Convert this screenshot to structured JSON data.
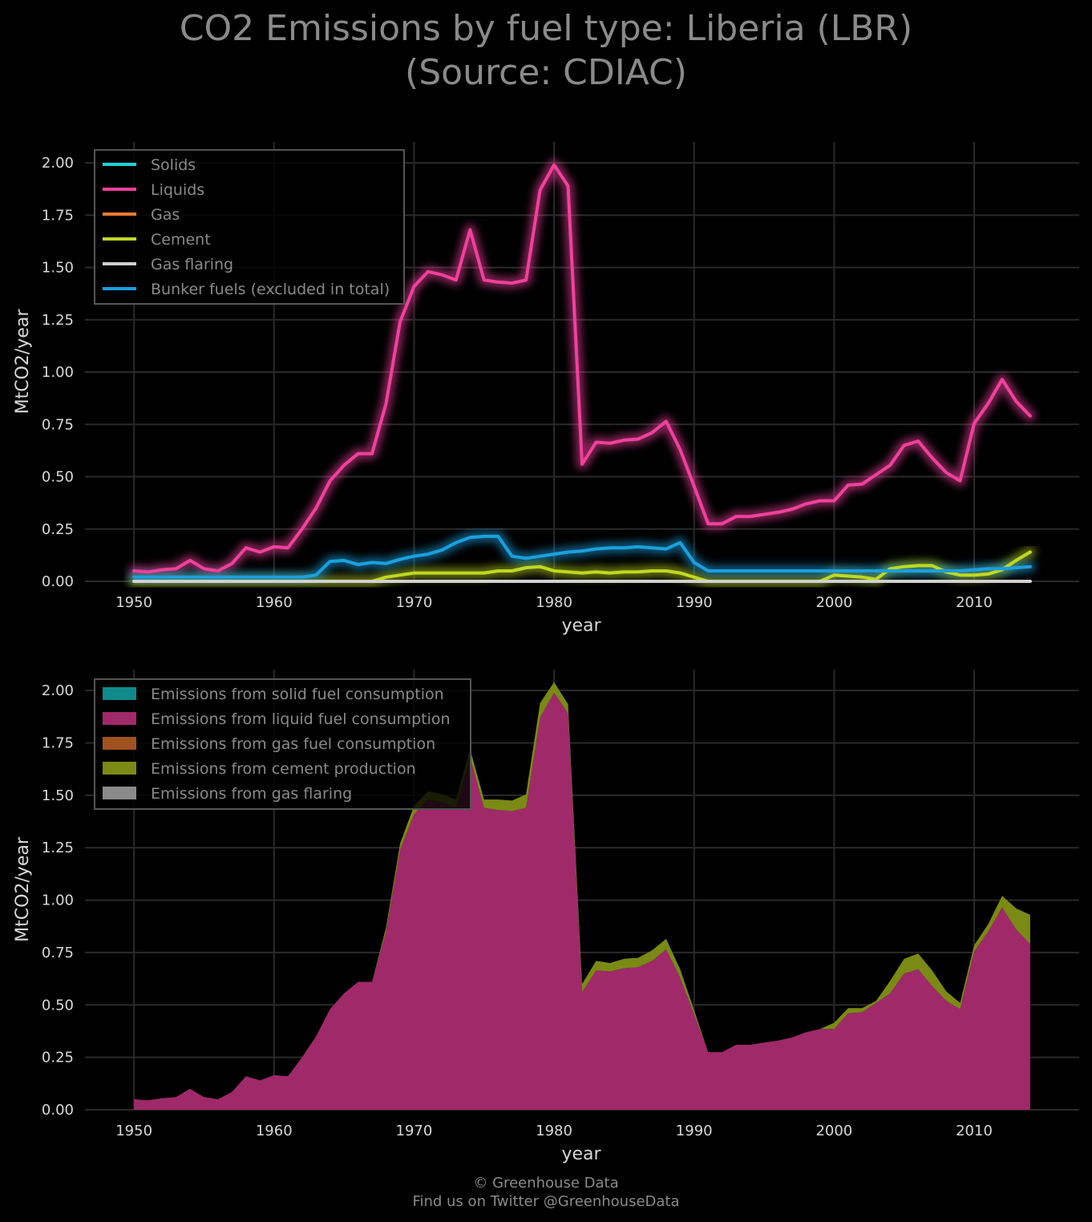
{
  "title": {
    "line1": "CO2 Emissions by fuel type: Liberia (LBR)",
    "line2": "(Source: CDIAC)"
  },
  "footer": {
    "line1": "© Greenhouse Data",
    "line2": "Find us on Twitter @GreenhouseData"
  },
  "colors": {
    "background": "#000000",
    "grid": "#2a2a2a",
    "text": "#8a8a8a",
    "tick_text": "#d8d8d8",
    "solids": "#19d3d3",
    "liquids": "#f0409c",
    "gas": "#f07a30",
    "cement": "#c0d820",
    "gas_flaring": "#d0d0d0",
    "bunker": "#1aa0e0",
    "solids_fill": "#0f8a8a",
    "liquids_fill": "#a0296a",
    "gas_fill": "#a0521e",
    "cement_fill": "#7a8a14",
    "flaring_fill": "#8a8a8a"
  },
  "chart_data": [
    {
      "type": "line",
      "xlabel": "year",
      "ylabel": "MtCO2/year",
      "xlim": [
        1946.5,
        2017.5
      ],
      "ylim": [
        0,
        2.1
      ],
      "xticks": [
        1950,
        1960,
        1970,
        1980,
        1990,
        2000,
        2010
      ],
      "xtick_labels": [
        "1950",
        "1960",
        "1970",
        "1980",
        "1990",
        "2000",
        "2010"
      ],
      "yticks": [
        0,
        0.25,
        0.5,
        0.75,
        1.0,
        1.25,
        1.5,
        1.75,
        2.0
      ],
      "ytick_labels": [
        "0.00",
        "0.25",
        "0.50",
        "0.75",
        "1.00",
        "1.25",
        "1.50",
        "1.75",
        "2.00"
      ],
      "grid": true,
      "legend_position": "top-left",
      "x": [
        1950,
        1951,
        1952,
        1953,
        1954,
        1955,
        1956,
        1957,
        1958,
        1959,
        1960,
        1961,
        1962,
        1963,
        1964,
        1965,
        1966,
        1967,
        1968,
        1969,
        1970,
        1971,
        1972,
        1973,
        1974,
        1975,
        1976,
        1977,
        1978,
        1979,
        1980,
        1981,
        1982,
        1983,
        1984,
        1985,
        1986,
        1987,
        1988,
        1989,
        1990,
        1991,
        1992,
        1993,
        1994,
        1995,
        1996,
        1997,
        1998,
        1999,
        2000,
        2001,
        2002,
        2003,
        2004,
        2005,
        2006,
        2007,
        2008,
        2009,
        2010,
        2011,
        2012,
        2013,
        2014
      ],
      "series": [
        {
          "name": "Solids",
          "color_key": "solids",
          "values": [
            0,
            0,
            0,
            0,
            0,
            0,
            0,
            0,
            0,
            0,
            0,
            0,
            0,
            0,
            0,
            0,
            0,
            0,
            0,
            0,
            0,
            0,
            0,
            0,
            0,
            0,
            0,
            0,
            0,
            0,
            0,
            0,
            0,
            0,
            0,
            0,
            0,
            0,
            0,
            0,
            0,
            0,
            0,
            0,
            0,
            0,
            0,
            0,
            0,
            0,
            0,
            0,
            0,
            0,
            0,
            0,
            0,
            0,
            0,
            0,
            0,
            0,
            0,
            0,
            0
          ]
        },
        {
          "name": "Liquids",
          "color_key": "liquids",
          "values": [
            0.05,
            0.045,
            0.055,
            0.06,
            0.1,
            0.06,
            0.05,
            0.085,
            0.16,
            0.14,
            0.165,
            0.16,
            0.25,
            0.35,
            0.48,
            0.555,
            0.61,
            0.61,
            0.85,
            1.24,
            1.41,
            1.48,
            1.465,
            1.44,
            1.68,
            1.44,
            1.43,
            1.425,
            1.44,
            1.87,
            1.99,
            1.89,
            0.56,
            0.665,
            0.66,
            0.675,
            0.68,
            0.71,
            0.765,
            0.63,
            0.455,
            0.275,
            0.275,
            0.31,
            0.31,
            0.32,
            0.33,
            0.345,
            0.37,
            0.385,
            0.385,
            0.46,
            0.465,
            0.51,
            0.555,
            0.65,
            0.67,
            0.59,
            0.52,
            0.48,
            0.755,
            0.85,
            0.965,
            0.86,
            0.79
          ]
        },
        {
          "name": "Gas",
          "color_key": "gas",
          "values": [
            0,
            0,
            0,
            0,
            0,
            0,
            0,
            0,
            0,
            0,
            0,
            0,
            0,
            0,
            0,
            0,
            0,
            0,
            0,
            0,
            0,
            0,
            0,
            0,
            0,
            0,
            0,
            0,
            0,
            0,
            0,
            0,
            0,
            0,
            0,
            0,
            0,
            0,
            0,
            0,
            0,
            0,
            0,
            0,
            0,
            0,
            0,
            0,
            0,
            0,
            0,
            0,
            0,
            0,
            0,
            0,
            0,
            0,
            0,
            0,
            0,
            0,
            0,
            0,
            0
          ]
        },
        {
          "name": "Cement",
          "color_key": "cement",
          "values": [
            0,
            0,
            0,
            0,
            0,
            0,
            0,
            0,
            0,
            0,
            0,
            0,
            0,
            0,
            0,
            0,
            0,
            0,
            0.02,
            0.03,
            0.04,
            0.04,
            0.04,
            0.04,
            0.04,
            0.04,
            0.05,
            0.05,
            0.065,
            0.07,
            0.05,
            0.045,
            0.04,
            0.045,
            0.04,
            0.045,
            0.045,
            0.05,
            0.05,
            0.04,
            0.02,
            0,
            0,
            0,
            0,
            0,
            0,
            0,
            0,
            0,
            0.03,
            0.025,
            0.02,
            0.01,
            0.06,
            0.07,
            0.075,
            0.075,
            0.045,
            0.03,
            0.03,
            0.035,
            0.055,
            0.1,
            0.14
          ]
        },
        {
          "name": "Gas flaring",
          "color_key": "gas_flaring",
          "values": [
            0,
            0,
            0,
            0,
            0,
            0,
            0,
            0,
            0,
            0,
            0,
            0,
            0,
            0,
            0,
            0,
            0,
            0,
            0,
            0,
            0,
            0,
            0,
            0,
            0,
            0,
            0,
            0,
            0,
            0,
            0,
            0,
            0,
            0,
            0,
            0,
            0,
            0,
            0,
            0,
            0,
            0,
            0,
            0,
            0,
            0,
            0,
            0,
            0,
            0,
            0,
            0,
            0,
            0,
            0,
            0,
            0,
            0,
            0,
            0,
            0,
            0,
            0,
            0,
            0
          ]
        },
        {
          "name": "Bunker fuels (excluded in total)",
          "color_key": "bunker",
          "values": [
            0.02,
            0.02,
            0.02,
            0.02,
            0.02,
            0.02,
            0.02,
            0.02,
            0.02,
            0.02,
            0.02,
            0.02,
            0.02,
            0.03,
            0.095,
            0.1,
            0.08,
            0.09,
            0.085,
            0.105,
            0.12,
            0.13,
            0.15,
            0.185,
            0.21,
            0.215,
            0.215,
            0.12,
            0.11,
            0.12,
            0.13,
            0.14,
            0.145,
            0.155,
            0.16,
            0.16,
            0.165,
            0.16,
            0.155,
            0.185,
            0.09,
            0.05,
            0.05,
            0.05,
            0.05,
            0.05,
            0.05,
            0.05,
            0.05,
            0.05,
            0.05,
            0.05,
            0.05,
            0.05,
            0.05,
            0.05,
            0.05,
            0.05,
            0.05,
            0.05,
            0.055,
            0.06,
            0.06,
            0.065,
            0.07
          ]
        }
      ]
    },
    {
      "type": "area",
      "stacked": true,
      "xlabel": "year",
      "ylabel": "MtCO2/year",
      "xlim": [
        1946.5,
        2017.5
      ],
      "ylim": [
        0,
        2.1
      ],
      "xticks": [
        1950,
        1960,
        1970,
        1980,
        1990,
        2000,
        2010
      ],
      "xtick_labels": [
        "1950",
        "1960",
        "1970",
        "1980",
        "1990",
        "2000",
        "2010"
      ],
      "yticks": [
        0,
        0.25,
        0.5,
        0.75,
        1.0,
        1.25,
        1.5,
        1.75,
        2.0
      ],
      "ytick_labels": [
        "0.00",
        "0.25",
        "0.50",
        "0.75",
        "1.00",
        "1.25",
        "1.50",
        "1.75",
        "2.00"
      ],
      "grid": true,
      "legend_position": "top-left",
      "x": [
        1950,
        1951,
        1952,
        1953,
        1954,
        1955,
        1956,
        1957,
        1958,
        1959,
        1960,
        1961,
        1962,
        1963,
        1964,
        1965,
        1966,
        1967,
        1968,
        1969,
        1970,
        1971,
        1972,
        1973,
        1974,
        1975,
        1976,
        1977,
        1978,
        1979,
        1980,
        1981,
        1982,
        1983,
        1984,
        1985,
        1986,
        1987,
        1988,
        1989,
        1990,
        1991,
        1992,
        1993,
        1994,
        1995,
        1996,
        1997,
        1998,
        1999,
        2000,
        2001,
        2002,
        2003,
        2004,
        2005,
        2006,
        2007,
        2008,
        2009,
        2010,
        2011,
        2012,
        2013,
        2014
      ],
      "series": [
        {
          "name": "Emissions from solid fuel consumption",
          "color_key": "solids_fill",
          "values": [
            0,
            0,
            0,
            0,
            0,
            0,
            0,
            0,
            0,
            0,
            0,
            0,
            0,
            0,
            0,
            0,
            0,
            0,
            0,
            0,
            0,
            0,
            0,
            0,
            0,
            0,
            0,
            0,
            0,
            0,
            0,
            0,
            0,
            0,
            0,
            0,
            0,
            0,
            0,
            0,
            0,
            0,
            0,
            0,
            0,
            0,
            0,
            0,
            0,
            0,
            0,
            0,
            0,
            0,
            0,
            0,
            0,
            0,
            0,
            0,
            0,
            0,
            0,
            0,
            0
          ]
        },
        {
          "name": "Emissions from liquid fuel consumption",
          "color_key": "liquids_fill",
          "values": [
            0.05,
            0.045,
            0.055,
            0.06,
            0.1,
            0.06,
            0.05,
            0.085,
            0.16,
            0.14,
            0.165,
            0.16,
            0.25,
            0.35,
            0.48,
            0.555,
            0.61,
            0.61,
            0.85,
            1.24,
            1.41,
            1.48,
            1.465,
            1.44,
            1.68,
            1.44,
            1.43,
            1.425,
            1.44,
            1.87,
            1.99,
            1.89,
            0.56,
            0.665,
            0.66,
            0.675,
            0.68,
            0.71,
            0.765,
            0.63,
            0.455,
            0.275,
            0.275,
            0.31,
            0.31,
            0.32,
            0.33,
            0.345,
            0.37,
            0.385,
            0.385,
            0.46,
            0.465,
            0.51,
            0.555,
            0.65,
            0.67,
            0.59,
            0.52,
            0.48,
            0.755,
            0.85,
            0.965,
            0.86,
            0.79
          ]
        },
        {
          "name": "Emissions from gas fuel consumption",
          "color_key": "gas_fill",
          "values": [
            0,
            0,
            0,
            0,
            0,
            0,
            0,
            0,
            0,
            0,
            0,
            0,
            0,
            0,
            0,
            0,
            0,
            0,
            0,
            0,
            0,
            0,
            0,
            0,
            0,
            0,
            0,
            0,
            0,
            0,
            0,
            0,
            0,
            0,
            0,
            0,
            0,
            0,
            0,
            0,
            0,
            0,
            0,
            0,
            0,
            0,
            0,
            0,
            0,
            0,
            0,
            0,
            0,
            0,
            0,
            0,
            0,
            0,
            0,
            0,
            0,
            0,
            0,
            0,
            0
          ]
        },
        {
          "name": "Emissions from cement production",
          "color_key": "cement_fill",
          "values": [
            0,
            0,
            0,
            0,
            0,
            0,
            0,
            0,
            0,
            0,
            0,
            0,
            0,
            0,
            0,
            0,
            0,
            0,
            0.02,
            0.03,
            0.04,
            0.04,
            0.04,
            0.04,
            0.04,
            0.04,
            0.05,
            0.05,
            0.065,
            0.07,
            0.05,
            0.045,
            0.04,
            0.045,
            0.04,
            0.045,
            0.045,
            0.05,
            0.05,
            0.04,
            0.02,
            0,
            0,
            0,
            0,
            0,
            0,
            0,
            0,
            0,
            0.03,
            0.025,
            0.02,
            0.01,
            0.06,
            0.07,
            0.075,
            0.075,
            0.045,
            0.03,
            0.03,
            0.035,
            0.055,
            0.1,
            0.14
          ]
        },
        {
          "name": "Emissions from gas flaring",
          "color_key": "flaring_fill",
          "values": [
            0,
            0,
            0,
            0,
            0,
            0,
            0,
            0,
            0,
            0,
            0,
            0,
            0,
            0,
            0,
            0,
            0,
            0,
            0,
            0,
            0,
            0,
            0,
            0,
            0,
            0,
            0,
            0,
            0,
            0,
            0,
            0,
            0,
            0,
            0,
            0,
            0,
            0,
            0,
            0,
            0,
            0,
            0,
            0,
            0,
            0,
            0,
            0,
            0,
            0,
            0,
            0,
            0,
            0,
            0,
            0,
            0,
            0,
            0,
            0,
            0,
            0,
            0,
            0,
            0
          ]
        }
      ]
    }
  ]
}
